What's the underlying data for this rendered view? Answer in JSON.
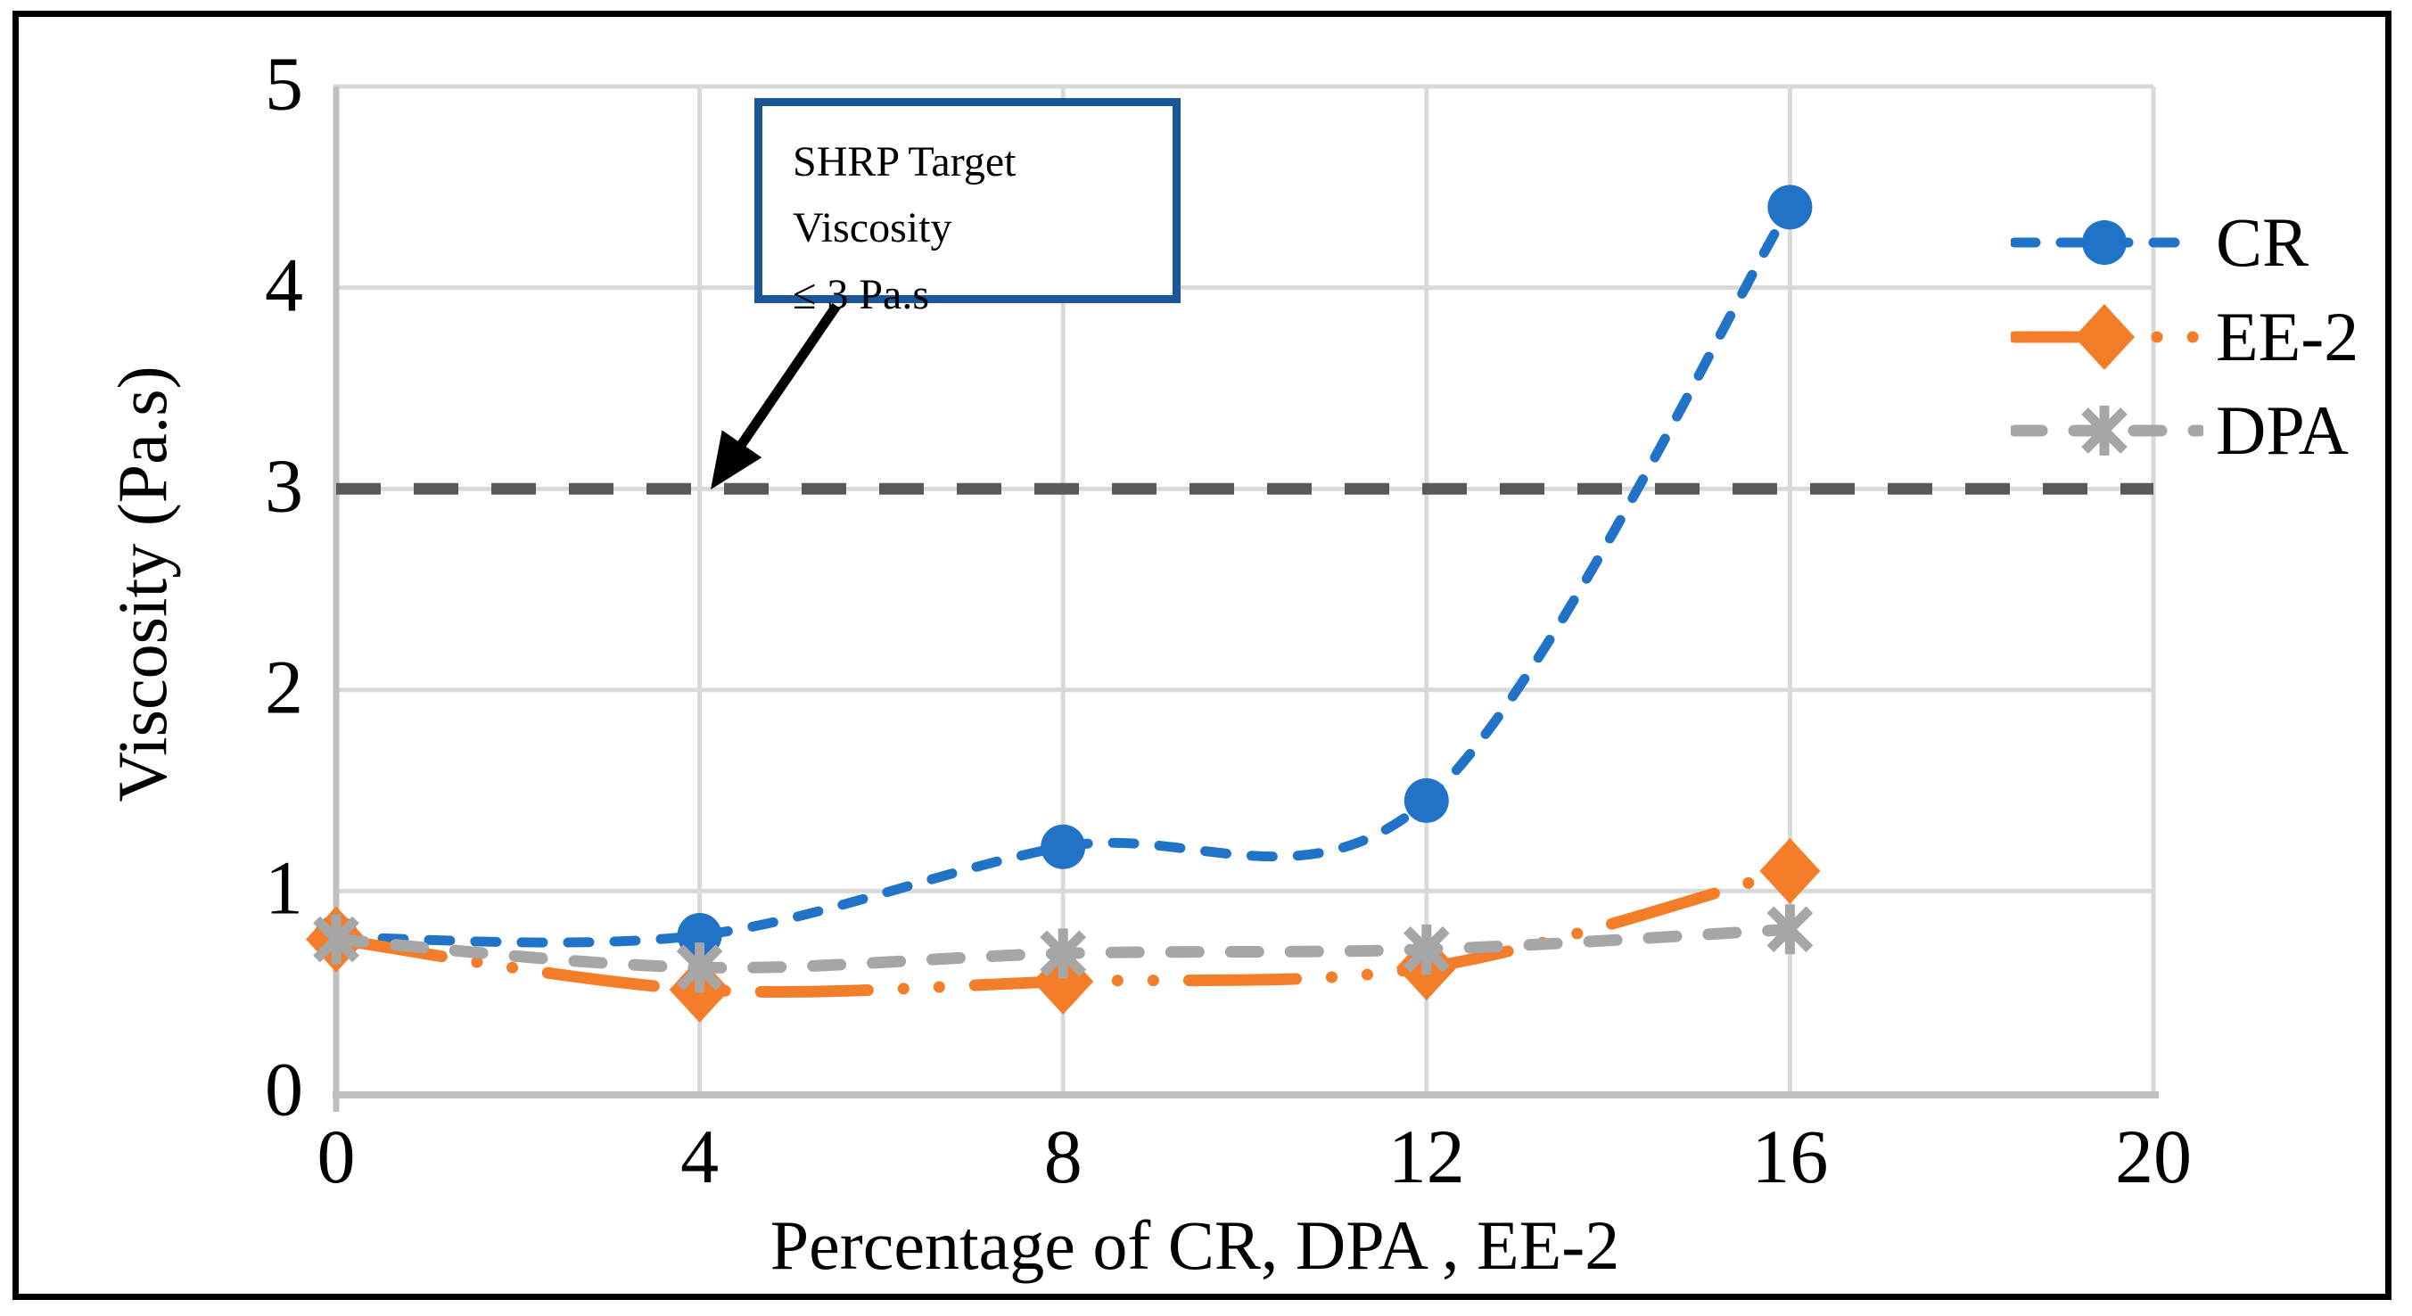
{
  "chart_data": {
    "type": "line",
    "title": "",
    "xlabel": "Percentage of CR, DPA , EE-2",
    "ylabel": "Viscosity (Pa.s)",
    "x": [
      0,
      4,
      8,
      12,
      16
    ],
    "series": [
      {
        "name": "CR",
        "color": "#2073C6",
        "line_style": "dashed",
        "marker": "circle",
        "values": [
          0.77,
          0.78,
          1.22,
          1.45,
          4.4
        ]
      },
      {
        "name": "EE-2",
        "color": "#F47D2A",
        "line_style": "dash-dot-dot",
        "marker": "diamond",
        "values": [
          0.76,
          0.51,
          0.55,
          0.62,
          1.1
        ]
      },
      {
        "name": "DPA",
        "color": "#A6A6A6",
        "line_style": "dashed",
        "marker": "asterisk",
        "values": [
          0.76,
          0.62,
          0.69,
          0.71,
          0.81
        ]
      }
    ],
    "reference_line": {
      "y": 3,
      "color": "#595959",
      "style": "dashed",
      "label": "SHRP Target Viscosity ≤ 3 Pa.s"
    },
    "xlim": [
      0,
      20
    ],
    "ylim": [
      0,
      5
    ],
    "xticks": [
      0,
      4,
      8,
      12,
      16,
      20
    ],
    "yticks": [
      0,
      1,
      2,
      3,
      4,
      5
    ],
    "grid": true,
    "legend_position": "right-inside"
  },
  "annotation": {
    "line1": "SHRP Target Viscosity",
    "line2": "≤ 3 Pa.s"
  },
  "legend": {
    "items": [
      "CR",
      "EE-2",
      "DPA"
    ]
  },
  "colors": {
    "grid": "#D9D9D9",
    "axis": "#BFBFBF",
    "annotation_border": "#1A5796",
    "figure_border": "#000000",
    "arrow": "#000000",
    "text": "#000000",
    "background": "#FFFFFF"
  }
}
